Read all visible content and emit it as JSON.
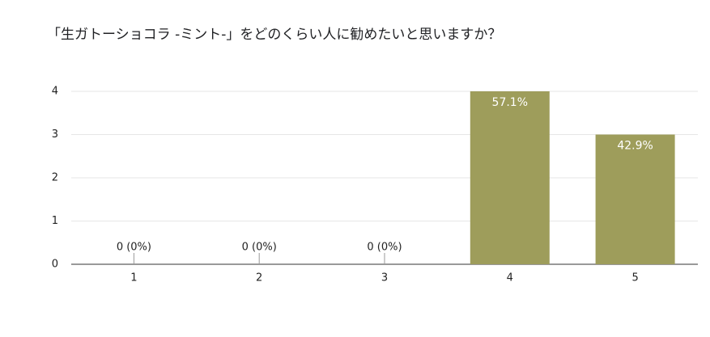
{
  "chart_data": {
    "type": "bar",
    "title": "「生ガトーショコラ -ミント-」をどのくらい人に勧めたいと思いますか？",
    "categories": [
      "1",
      "2",
      "3",
      "4",
      "5"
    ],
    "values": [
      0,
      0,
      0,
      4,
      3
    ],
    "value_labels": [
      "0 (0%)",
      "0 (0%)",
      "0 (0%)",
      "57.1%",
      "42.9%"
    ],
    "color": "#9e9d5b",
    "ylim": [
      0,
      4
    ],
    "yticks": [
      0,
      1,
      2,
      3,
      4
    ],
    "grid": true
  }
}
